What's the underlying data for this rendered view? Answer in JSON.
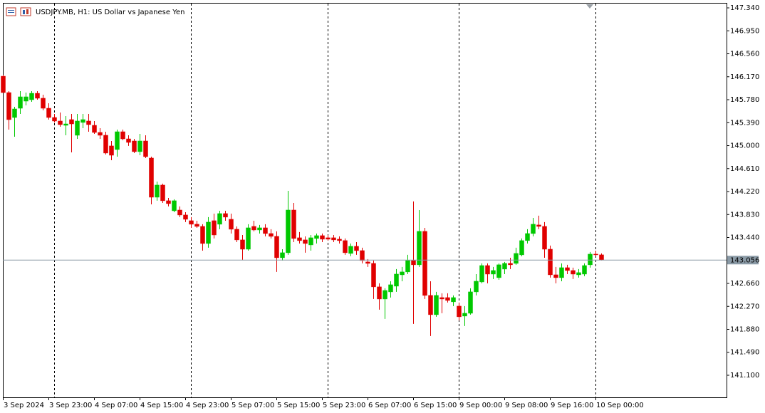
{
  "chart_data": {
    "type": "candlestick",
    "title": "USDJPY.MB, H1:  US Dollar vs Japanese Yen",
    "categories": [
      "3 Sep 2024",
      null,
      null,
      null,
      null,
      null,
      null,
      null,
      "3 Sep 23:00",
      null,
      null,
      null,
      null,
      null,
      null,
      null,
      "4 Sep 07:00",
      null,
      null,
      null,
      null,
      null,
      null,
      null,
      "4 Sep 15:00",
      null,
      null,
      null,
      null,
      null,
      null,
      null,
      "4 Sep 23:00",
      null,
      null,
      null,
      null,
      null,
      null,
      null,
      "5 Sep 07:00",
      null,
      null,
      null,
      null,
      null,
      null,
      null,
      "5 Sep 15:00",
      null,
      null,
      null,
      null,
      null,
      null,
      null,
      "5 Sep 23:00",
      null,
      null,
      null,
      null,
      null,
      null,
      null,
      "6 Sep 07:00",
      null,
      null,
      null,
      null,
      null,
      null,
      null,
      "6 Sep 15:00",
      null,
      null,
      null,
      null,
      null,
      null,
      null,
      "9 Sep 00:00",
      null,
      null,
      null,
      null,
      null,
      null,
      null,
      "9 Sep 08:00",
      null,
      null,
      null,
      null,
      null,
      null,
      null,
      "9 Sep 16:00",
      null,
      null,
      null,
      null,
      null,
      null,
      null,
      "10 Sep 00:00",
      null
    ],
    "open": [
      146.179,
      145.901,
      145.478,
      145.635,
      145.756,
      145.78,
      145.889,
      145.805,
      145.635,
      145.478,
      145.418,
      145.345,
      145.442,
      145.176,
      145.394,
      145.418,
      145.345,
      145.224,
      145.176,
      144.995,
      144.934,
      145.236,
      145.115,
      145.079,
      144.898,
      145.079,
      144.789,
      144.124,
      144.33,
      144.064,
      143.894,
      143.906,
      143.822,
      143.725,
      143.665,
      143.628,
      143.338,
      143.725,
      143.665,
      143.846,
      143.749,
      143.58,
      143.399,
      143.241,
      143.628,
      143.568,
      143.604,
      143.507,
      143.459,
      143.096,
      143.181,
      143.906,
      143.435,
      143.399,
      143.314,
      143.423,
      143.471,
      143.435,
      143.435,
      143.411,
      143.387,
      143.169,
      143.29,
      143.217,
      143.024,
      143.0,
      142.601,
      142.395,
      142.516,
      142.613,
      142.806,
      142.855,
      143.048,
      142.976,
      143.544,
      142.456,
      142.129,
      142.419,
      142.419,
      142.347,
      142.274,
      142.105,
      142.153,
      142.516,
      142.685,
      142.963,
      142.818,
      142.758,
      142.903,
      143.0,
      143.0,
      143.145,
      143.387,
      143.507,
      143.653,
      143.628,
      143.241,
      142.806,
      142.758,
      142.927,
      142.879,
      142.806,
      142.818,
      142.976,
      143.157,
      143.145
    ],
    "high": [
      146.204,
      145.925,
      145.659,
      145.925,
      145.901,
      145.925,
      145.925,
      145.865,
      145.72,
      145.539,
      145.563,
      145.502,
      145.539,
      145.539,
      145.539,
      145.539,
      145.418,
      145.297,
      145.236,
      145.079,
      145.273,
      145.273,
      145.176,
      145.115,
      145.2,
      145.176,
      144.813,
      144.39,
      144.354,
      144.112,
      144.088,
      143.967,
      143.87,
      143.786,
      143.725,
      143.665,
      143.786,
      143.846,
      143.894,
      143.894,
      143.846,
      143.628,
      143.483,
      143.665,
      143.725,
      143.653,
      143.665,
      143.58,
      143.544,
      143.241,
      144.233,
      144.027,
      143.532,
      143.459,
      143.483,
      143.507,
      143.507,
      143.483,
      143.483,
      143.459,
      143.423,
      143.338,
      143.362,
      143.266,
      143.072,
      143.048,
      142.661,
      142.577,
      142.697,
      142.903,
      142.939,
      143.145,
      144.052,
      143.906,
      143.604,
      142.697,
      142.516,
      142.492,
      142.492,
      142.456,
      142.335,
      142.274,
      142.577,
      142.818,
      143.0,
      143.0,
      142.939,
      143.0,
      143.024,
      143.096,
      143.266,
      143.423,
      143.58,
      143.773,
      143.81,
      143.701,
      143.302,
      142.939,
      143.0,
      142.976,
      142.927,
      142.903,
      143.0,
      143.193,
      143.217,
      143.169
    ],
    "low": [
      145.901,
      145.273,
      145.152,
      145.539,
      145.684,
      145.744,
      145.78,
      145.599,
      145.442,
      145.394,
      145.321,
      145.176,
      144.886,
      145.115,
      145.297,
      145.236,
      145.2,
      145.115,
      144.849,
      144.753,
      144.813,
      145.091,
      144.995,
      144.874,
      144.837,
      144.789,
      144.003,
      144.064,
      144.027,
      143.967,
      143.87,
      143.786,
      143.701,
      143.604,
      143.604,
      143.217,
      143.266,
      143.423,
      143.58,
      143.725,
      143.507,
      143.362,
      143.06,
      143.217,
      143.544,
      143.507,
      143.459,
      143.423,
      142.855,
      143.048,
      143.145,
      143.362,
      143.338,
      143.181,
      143.217,
      143.338,
      143.362,
      143.387,
      143.362,
      143.338,
      143.145,
      143.121,
      143.145,
      143.0,
      142.939,
      142.395,
      142.214,
      142.057,
      142.419,
      142.516,
      142.697,
      142.818,
      141.972,
      142.939,
      142.395,
      141.767,
      142.093,
      142.153,
      142.335,
      142.274,
      142.032,
      141.936,
      142.129,
      142.456,
      142.661,
      142.661,
      142.734,
      142.722,
      142.818,
      142.903,
      142.976,
      143.121,
      143.338,
      143.459,
      143.58,
      143.096,
      142.758,
      142.661,
      142.697,
      142.818,
      142.734,
      142.758,
      142.782,
      142.927,
      143.121,
      143.05
    ],
    "close": [
      145.901,
      145.442,
      145.623,
      145.829,
      145.829,
      145.889,
      145.805,
      145.635,
      145.478,
      145.418,
      145.357,
      145.369,
      145.369,
      145.418,
      145.442,
      145.357,
      145.224,
      145.176,
      144.874,
      144.837,
      145.236,
      145.115,
      145.055,
      144.898,
      145.079,
      144.813,
      144.124,
      144.33,
      144.064,
      144.015,
      144.064,
      143.822,
      143.749,
      143.665,
      143.628,
      143.338,
      143.701,
      143.483,
      143.846,
      143.786,
      143.58,
      143.399,
      143.241,
      143.604,
      143.568,
      143.604,
      143.507,
      143.459,
      143.096,
      143.181,
      143.906,
      143.423,
      143.387,
      143.338,
      143.435,
      143.471,
      143.411,
      143.411,
      143.399,
      143.387,
      143.181,
      143.29,
      143.217,
      143.048,
      143.0,
      142.601,
      142.395,
      142.54,
      142.637,
      142.818,
      142.855,
      143.048,
      142.976,
      143.544,
      142.456,
      142.129,
      142.456,
      142.395,
      142.371,
      142.419,
      142.093,
      142.153,
      142.516,
      142.697,
      142.963,
      142.818,
      142.879,
      142.976,
      143.0,
      142.976,
      143.169,
      143.387,
      143.507,
      143.665,
      143.628,
      143.241,
      142.806,
      142.758,
      142.927,
      142.879,
      142.818,
      142.843,
      142.963,
      143.157,
      143.145,
      143.056
    ],
    "up_color": "#00c800",
    "down_color": "#e00000",
    "current_price": 143.056,
    "ylim": [
      140.725,
      147.413
    ],
    "yticks": [
      {
        "value": 141.1,
        "label": "141.100"
      },
      {
        "value": 141.49,
        "label": "141.490"
      },
      {
        "value": 141.88,
        "label": "141.880"
      },
      {
        "value": 142.27,
        "label": "142.270"
      },
      {
        "value": 142.66,
        "label": "142.660"
      },
      {
        "value": 143.44,
        "label": "143.440"
      },
      {
        "value": 143.83,
        "label": "143.830"
      },
      {
        "value": 144.22,
        "label": "144.220"
      },
      {
        "value": 144.61,
        "label": "144.610"
      },
      {
        "value": 145,
        "label": "145.000"
      },
      {
        "value": 145.39,
        "label": "145.390"
      },
      {
        "value": 145.78,
        "label": "145.780"
      },
      {
        "value": 146.17,
        "label": "146.170"
      },
      {
        "value": 146.56,
        "label": "146.560"
      },
      {
        "value": 146.95,
        "label": "146.950"
      },
      {
        "value": 147.34,
        "label": "147.340"
      }
    ]
  }
}
